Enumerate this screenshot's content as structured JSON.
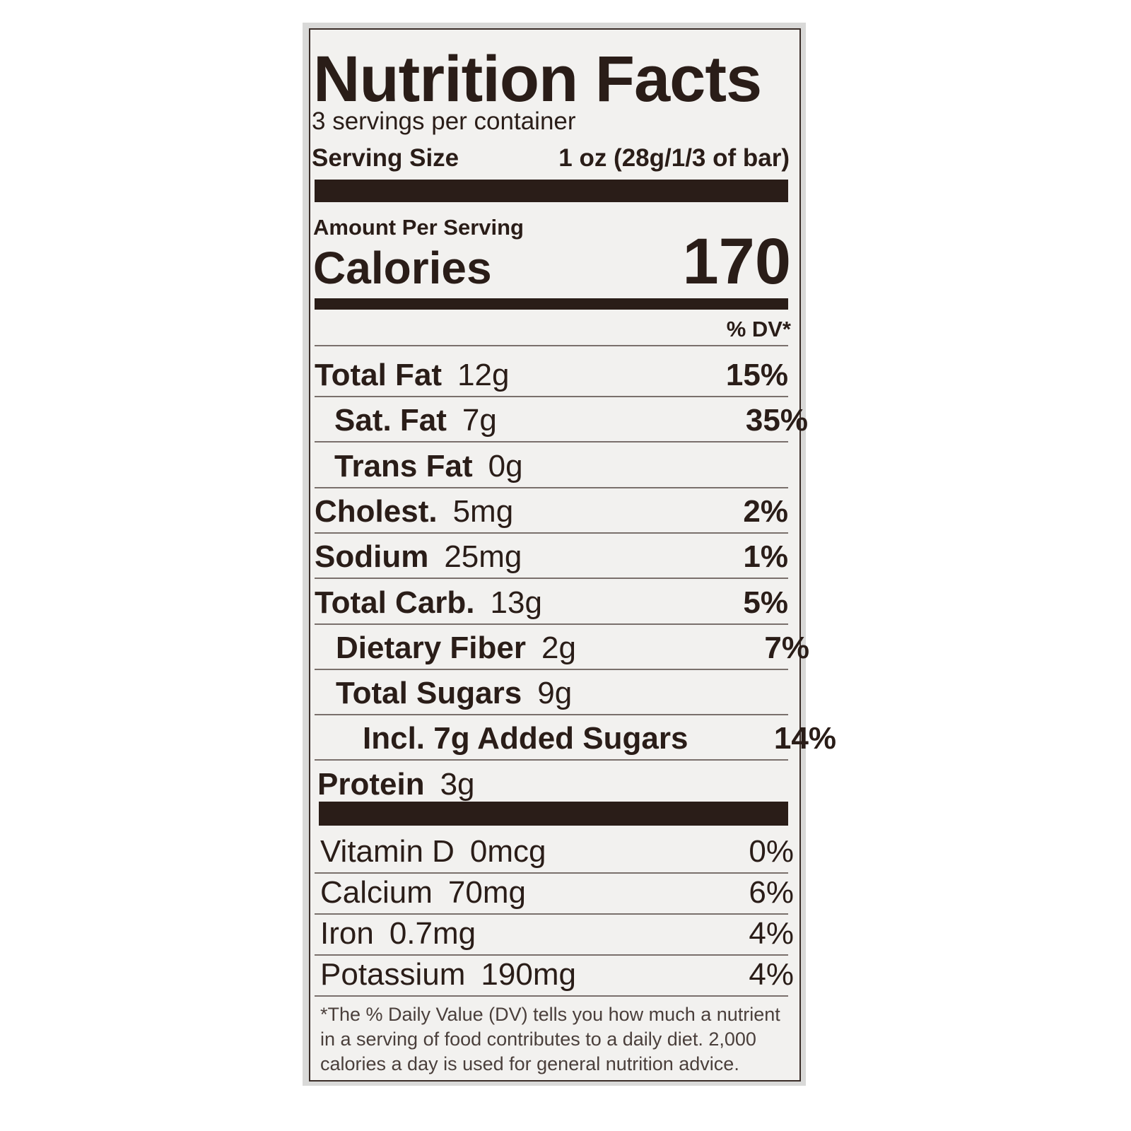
{
  "title": "Nutrition Facts",
  "servings": "3 servings per container",
  "serving_size": {
    "label": "Serving Size",
    "value": "1 oz (28g/1/3 of bar)"
  },
  "amount_per_serving": "Amount Per Serving",
  "calories": {
    "label": "Calories",
    "value": "170"
  },
  "dv_header": "% DV*",
  "nutrients": [
    {
      "name": "Total Fat",
      "amount": "12g",
      "dv": "15%"
    },
    {
      "name": "Sat. Fat",
      "amount": "7g",
      "dv": "35%"
    },
    {
      "name": "Trans Fat",
      "amount": "0g"
    },
    {
      "name": "Cholest.",
      "amount": "5mg",
      "dv": "2%"
    },
    {
      "name": "Sodium",
      "amount": "25mg",
      "dv": "1%"
    },
    {
      "name": "Total Carb.",
      "amount": "13g",
      "dv": "5%"
    },
    {
      "name": "Dietary Fiber",
      "amount": "2g",
      "dv": "7%"
    },
    {
      "name": "Total Sugars",
      "amount": "9g"
    },
    {
      "name": "Incl. 7g Added Sugars",
      "dv": "14%"
    },
    {
      "name": "Protein",
      "amount": "3g"
    }
  ],
  "vitamins": [
    {
      "name": "Vitamin D",
      "amount": "0mcg",
      "dv": "0%"
    },
    {
      "name": "Calcium",
      "amount": "70mg",
      "dv": "6%"
    },
    {
      "name": "Iron",
      "amount": "0.7mg",
      "dv": "4%"
    },
    {
      "name": "Potassium",
      "amount": "190mg",
      "dv": "4%"
    }
  ],
  "footnote": "*The % Daily Value (DV) tells you how much a nutrient in a serving of food contributes to a daily diet. 2,000 calories a day is used for general nutrition advice."
}
